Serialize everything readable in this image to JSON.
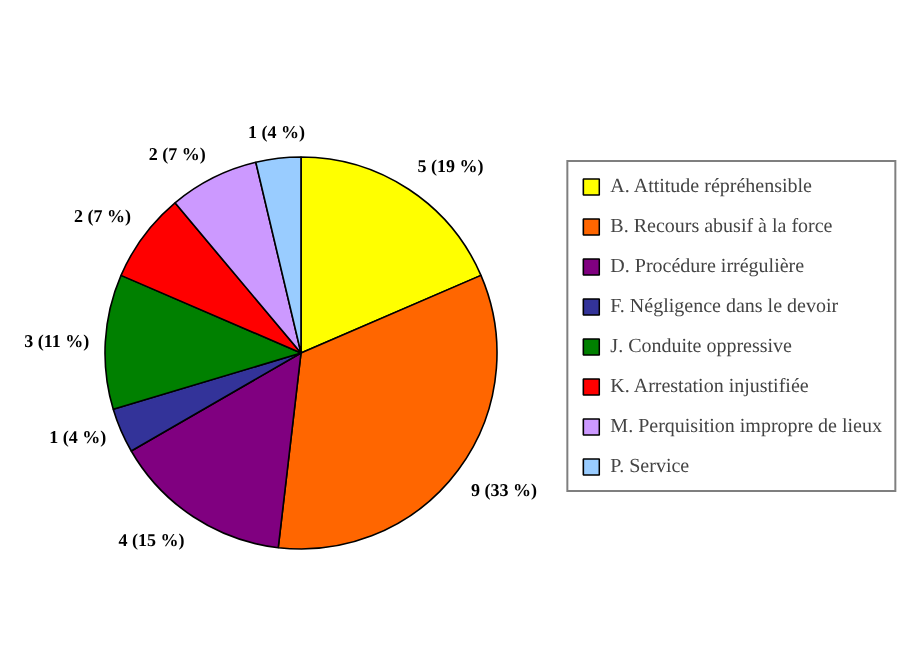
{
  "chart_data": {
    "type": "pie",
    "categories": [
      "A. Attitude répréhensible",
      "B. Recours abusif à la force",
      "D. Procédure irrégulière",
      "F. Négligence dans le devoir",
      "J. Conduite oppressive",
      "K. Arrestation injustifiée",
      "M. Perquisition impropre de lieux",
      "P. Service"
    ],
    "values": [
      5,
      9,
      4,
      1,
      3,
      2,
      2,
      1
    ],
    "value_labels": [
      "5 (19 %)",
      "9 (33 %)",
      "4 (15 %)",
      "1 (4 %)",
      "3 (11 %)",
      "2 (7 %)",
      "2 (7 %)",
      "1 (4 %)"
    ],
    "colors": [
      "#ffff00",
      "#ff6600",
      "#800080",
      "#333399",
      "#008000",
      "#ff0000",
      "#cc99ff",
      "#99ccff"
    ],
    "legend": "right"
  }
}
